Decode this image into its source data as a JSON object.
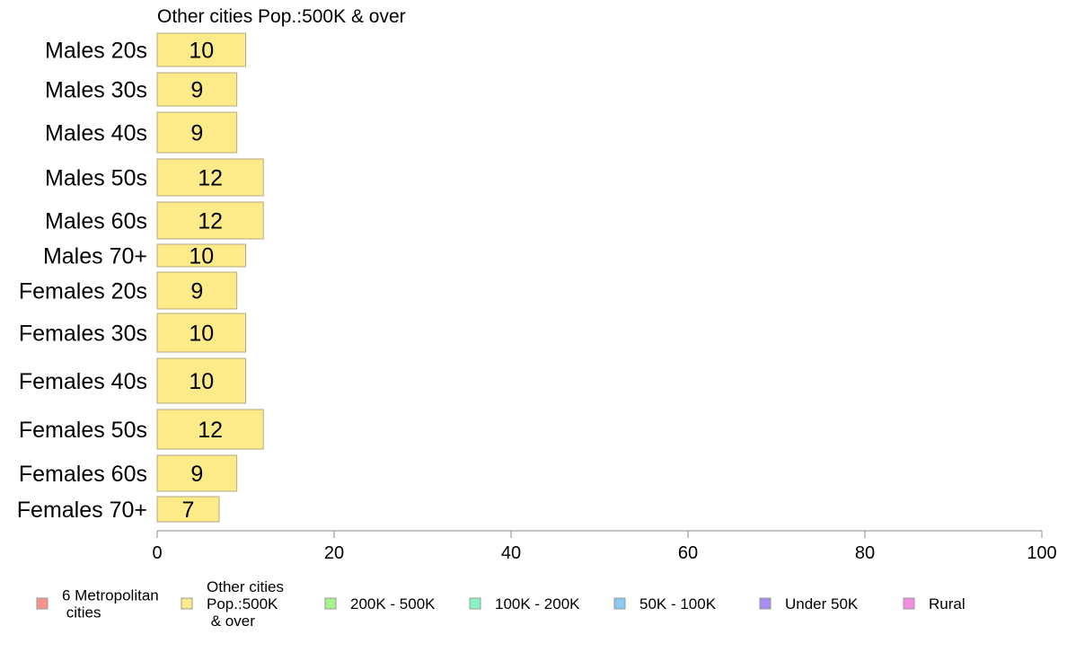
{
  "chart_data": {
    "type": "bar",
    "orientation": "horizontal",
    "title": "Other cities Pop.:500K & over",
    "categories": [
      "Males 20s",
      "Males 30s",
      "Males 40s",
      "Males 50s",
      "Males 60s",
      "Males 70+",
      "Females 20s",
      "Females 30s",
      "Females 40s",
      "Females 50s",
      "Females 60s",
      "Females 70+"
    ],
    "series": [
      {
        "name": "Other cities Pop.:500K & over",
        "color": "#fdeb8a",
        "values": [
          10,
          9,
          9,
          12,
          12,
          10,
          9,
          10,
          10,
          12,
          9,
          7
        ]
      }
    ],
    "data_labels": [
      "10",
      "9",
      "9",
      "12",
      "12",
      "10",
      "9",
      "10",
      "10",
      "12",
      "9",
      "7"
    ],
    "xlim": [
      0,
      100
    ],
    "x_ticks": [
      "0",
      "20",
      "40",
      "60",
      "80",
      "100"
    ],
    "xlabel": "",
    "ylabel": "",
    "grid": false,
    "legend_position": "bottom",
    "legend": [
      {
        "lines": [
          "6 Metropolitan",
          " cities"
        ],
        "color": "#f4928c"
      },
      {
        "lines": [
          "Other cities",
          "Pop.:500K",
          " & over"
        ],
        "color": "#fdeb8a"
      },
      {
        "lines": [
          "200K - 500K"
        ],
        "color": "#a6f28c"
      },
      {
        "lines": [
          "100K - 200K"
        ],
        "color": "#8cf2c5"
      },
      {
        "lines": [
          "50K - 100K"
        ],
        "color": "#8cc8f2"
      },
      {
        "lines": [
          "Under 50K"
        ],
        "color": "#a78cf2"
      },
      {
        "lines": [
          "Rural"
        ],
        "color": "#f28ce0"
      }
    ]
  }
}
